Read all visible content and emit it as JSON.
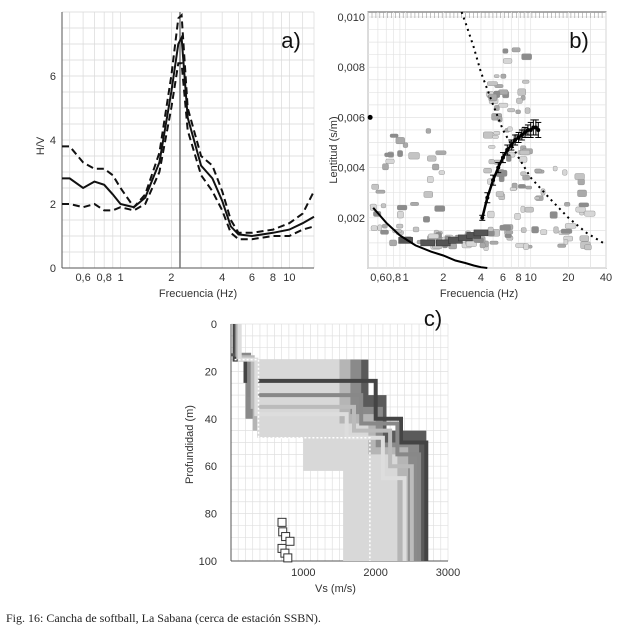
{
  "caption": "Fig. 16: Cancha de softball, La Sabana (cerca de estación SSBN).",
  "panel_labels": [
    "a)",
    "b)",
    "c)"
  ],
  "chart_data": [
    {
      "type": "line",
      "panel": "a)",
      "xlabel": "Frecuencia (Hz)",
      "ylabel": "H/V",
      "xscale": "log",
      "xlim": [
        0.45,
        14
      ],
      "ylim": [
        0,
        8
      ],
      "xtick_labels": [
        "0,6",
        "0,8",
        "1",
        "2",
        "4",
        "6",
        "8",
        "10"
      ],
      "xtick_values": [
        0.6,
        0.8,
        1,
        2,
        4,
        6,
        8,
        10
      ],
      "ytick_labels": [
        "0",
        "2",
        "4",
        "6"
      ],
      "ytick_values": [
        0,
        2,
        4,
        6
      ],
      "peak_frequency": 2.25,
      "series": [
        {
          "style": "solid",
          "x": [
            0.45,
            0.5,
            0.6,
            0.7,
            0.8,
            0.9,
            1.0,
            1.2,
            1.4,
            1.7,
            2.0,
            2.2,
            2.3,
            2.5,
            3.0,
            3.5,
            4.0,
            4.5,
            5.0,
            6.0,
            8.0,
            10.0,
            12.0,
            14.0
          ],
          "y": [
            2.8,
            2.8,
            2.5,
            2.7,
            2.6,
            2.3,
            2.0,
            1.9,
            2.2,
            3.3,
            5.5,
            7.0,
            7.2,
            4.7,
            3.2,
            2.8,
            2.1,
            1.3,
            1.05,
            1.0,
            1.1,
            1.2,
            1.4,
            1.6
          ]
        },
        {
          "style": "dashed",
          "x": [
            0.45,
            0.5,
            0.6,
            0.7,
            0.8,
            0.9,
            1.0,
            1.2,
            1.4,
            1.7,
            2.0,
            2.2,
            2.3,
            2.5,
            3.0,
            3.5,
            4.0,
            4.5,
            5.0,
            6.0,
            8.0,
            10.0,
            12.0,
            14.0
          ],
          "y": [
            3.8,
            3.8,
            3.3,
            3.1,
            3.1,
            2.9,
            2.5,
            1.9,
            2.3,
            3.6,
            6.0,
            7.8,
            7.9,
            5.0,
            3.5,
            3.2,
            2.4,
            1.5,
            1.1,
            1.1,
            1.2,
            1.4,
            1.7,
            2.4
          ]
        },
        {
          "style": "dashed",
          "x": [
            0.45,
            0.5,
            0.6,
            0.7,
            0.8,
            0.9,
            1.0,
            1.2,
            1.4,
            1.7,
            2.0,
            2.2,
            2.3,
            2.5,
            3.0,
            3.5,
            4.0,
            4.5,
            5.0,
            6.0,
            8.0,
            10.0,
            12.0,
            14.0
          ],
          "y": [
            2.0,
            2.0,
            1.9,
            2.0,
            1.8,
            1.8,
            1.9,
            1.8,
            2.0,
            3.0,
            5.0,
            6.4,
            6.4,
            4.3,
            2.9,
            2.4,
            1.8,
            1.1,
            0.9,
            0.9,
            1.0,
            1.0,
            1.2,
            1.3
          ]
        }
      ]
    },
    {
      "type": "scatter",
      "panel": "b)",
      "xlabel": "Frecuencia (Hz)",
      "ylabel": "Lentitud (s/m)",
      "xscale": "log",
      "xlim": [
        0.5,
        40
      ],
      "ylim": [
        0,
        0.0102
      ],
      "xtick_labels": [
        "0,6",
        "0,8",
        "1",
        "2",
        "4",
        "6",
        "8",
        "10",
        "20",
        "40"
      ],
      "xtick_values": [
        0.6,
        0.8,
        1,
        2,
        4,
        6,
        8,
        10,
        20,
        40
      ],
      "ytick_labels": [
        "0,002",
        "0,004",
        "0,006",
        "0,008",
        "0,010"
      ],
      "ytick_values": [
        0.002,
        0.004,
        0.006,
        0.008,
        0.01
      ],
      "picked_dispersion": {
        "x": [
          4.1,
          4.5,
          5.0,
          5.5,
          6.0,
          6.5,
          7.0,
          7.5,
          8.0,
          8.5,
          9.0,
          9.5,
          10.0,
          10.5,
          11.0,
          11.5
        ],
        "y": [
          0.002,
          0.0028,
          0.0035,
          0.004,
          0.0044,
          0.0047,
          0.0049,
          0.0051,
          0.0052,
          0.0053,
          0.0054,
          0.0055,
          0.0055,
          0.0056,
          0.0056,
          0.0055
        ],
        "err": [
          0.0001,
          0.0002,
          0.0002,
          0.0002,
          0.0002,
          0.0002,
          0.0002,
          0.0002,
          0.0002,
          0.0002,
          0.0002,
          0.0002,
          0.0003,
          0.0003,
          0.0003,
          0.0003
        ]
      },
      "lower_curve": {
        "x": [
          0.55,
          0.7,
          0.9,
          1.2,
          1.6,
          2.0,
          2.5,
          3.0,
          3.5,
          4.0,
          4.5
        ],
        "y": [
          0.0024,
          0.0018,
          0.0013,
          0.0009,
          0.00065,
          0.0005,
          0.0003,
          0.0002,
          0.0001,
          3e-05,
          0.0
        ]
      },
      "dotted_curve": {
        "x": [
          2.8,
          3.0,
          3.5,
          4.0,
          5.0,
          6.0,
          8.0,
          10.0,
          14.0,
          20.0,
          28.0,
          38.0
        ],
        "y": [
          0.0102,
          0.0098,
          0.0088,
          0.0078,
          0.0065,
          0.0055,
          0.0044,
          0.0036,
          0.0028,
          0.002,
          0.0014,
          0.001
        ]
      },
      "marker_point": {
        "x": 0.52,
        "y": 0.006
      }
    },
    {
      "type": "line",
      "panel": "c)",
      "xlabel": "Vs (m/s)",
      "ylabel": "Profundidad (m)",
      "xlim": [
        0,
        3000
      ],
      "ylim": [
        100,
        0
      ],
      "y_inverted": true,
      "xtick_labels": [
        "1000",
        "2000",
        "3000"
      ],
      "xtick_values": [
        1000,
        2000,
        3000
      ],
      "ytick_labels": [
        "0",
        "20",
        "40",
        "60",
        "80",
        "100"
      ],
      "ytick_values": [
        0,
        20,
        40,
        60,
        80,
        100
      ],
      "profiles": [
        {
          "shade": "#444444",
          "vs": [
            50,
            50,
            1900,
            2600,
            2600
          ],
          "depth": [
            0,
            15,
            15,
            50,
            100
          ],
          "steps": [
            [
              0,
              50
            ],
            [
              15,
              50
            ],
            [
              15,
              200
            ],
            [
              24,
              200
            ],
            [
              24,
              2000
            ],
            [
              40,
              2000
            ],
            [
              40,
              2350
            ],
            [
              50,
              2350
            ],
            [
              50,
              2700
            ],
            [
              100,
              2700
            ]
          ]
        },
        {
          "shade": "#888888",
          "steps": [
            [
              0,
              80
            ],
            [
              13,
              80
            ],
            [
              13,
              250
            ],
            [
              30,
              250
            ],
            [
              30,
              1800
            ],
            [
              42,
              1800
            ],
            [
              42,
              2300
            ],
            [
              55,
              2300
            ],
            [
              55,
              2600
            ],
            [
              100,
              2600
            ]
          ]
        },
        {
          "shade": "#bbbbbb",
          "steps": [
            [
              0,
              100
            ],
            [
              14,
              100
            ],
            [
              14,
              300
            ],
            [
              35,
              300
            ],
            [
              35,
              1700
            ],
            [
              45,
              1700
            ],
            [
              45,
              2200
            ],
            [
              60,
              2200
            ],
            [
              60,
              2500
            ],
            [
              100,
              2500
            ]
          ]
        },
        {
          "shade": "#dddddd",
          "steps": [
            [
              0,
              120
            ],
            [
              15,
              120
            ],
            [
              15,
              350
            ],
            [
              38,
              350
            ],
            [
              38,
              1600
            ],
            [
              48,
              1600
            ],
            [
              48,
              2100
            ],
            [
              65,
              2100
            ],
            [
              65,
              2400
            ],
            [
              100,
              2400
            ]
          ]
        }
      ],
      "best_profile": {
        "steps": [
          [
            15,
            50
          ],
          [
            15,
            380
          ],
          [
            48,
            380
          ],
          [
            48,
            1920
          ],
          [
            100,
            1920
          ]
        ]
      }
    }
  ]
}
